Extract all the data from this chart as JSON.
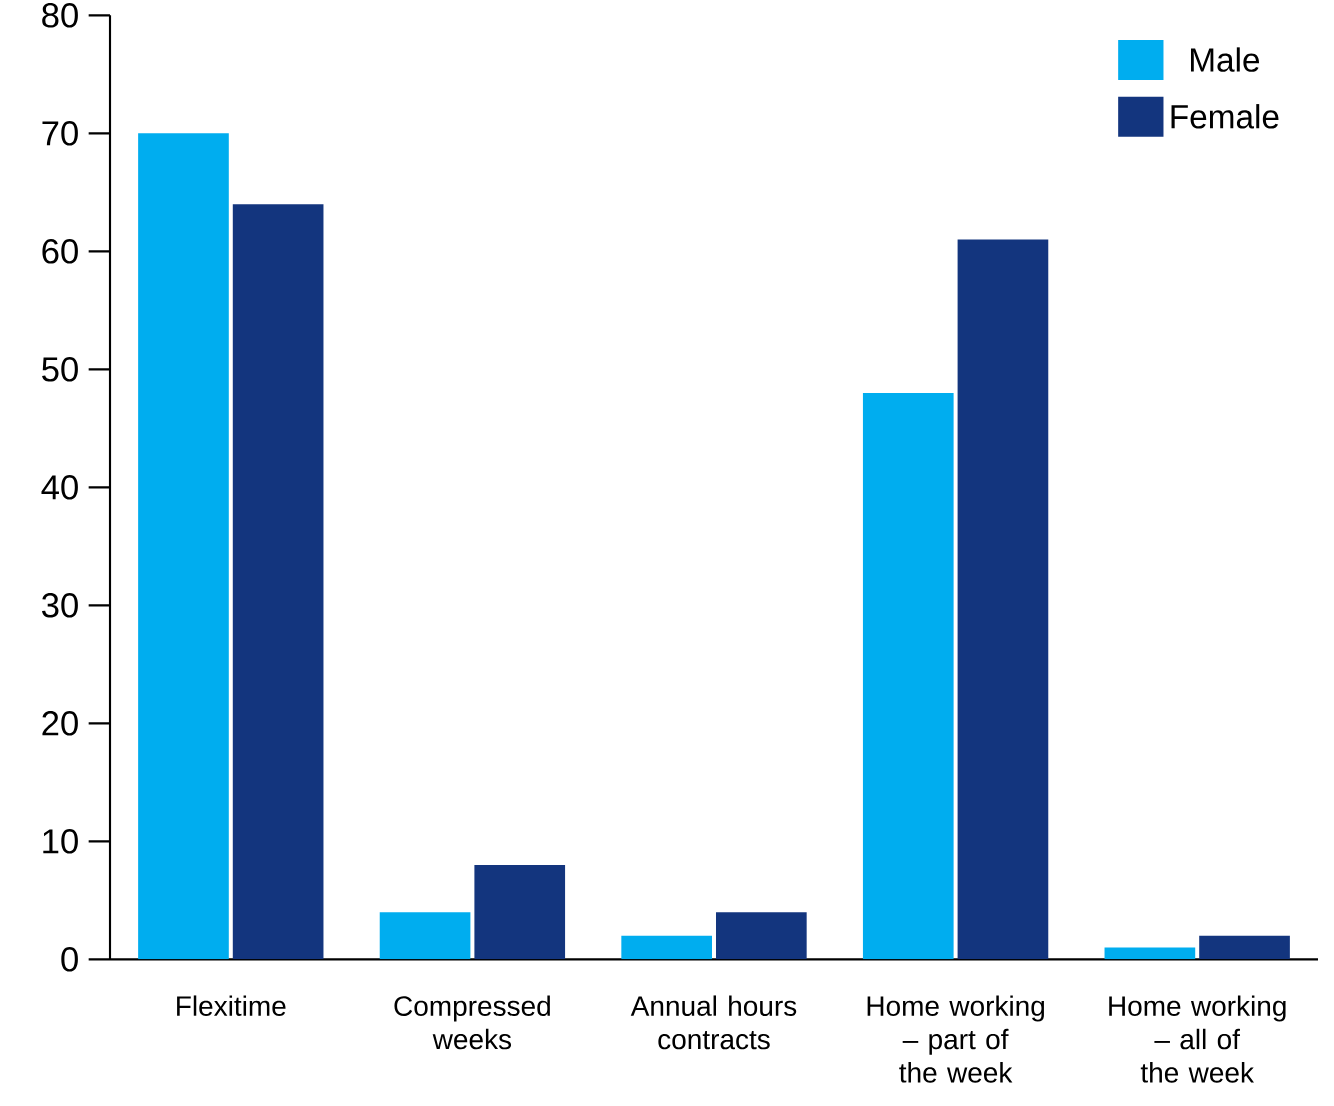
{
  "chart_data": {
    "type": "bar",
    "categories": [
      "Flexitime",
      "Compressed weeks",
      "Annual hours contracts",
      "Home working – part of the week",
      "Home working – all of the week"
    ],
    "series": [
      {
        "name": "Male",
        "color": "#00adef",
        "values": [
          70,
          4,
          2,
          48,
          1
        ]
      },
      {
        "name": "Female",
        "color": "#13357e",
        "values": [
          64,
          8,
          4,
          61,
          2
        ]
      }
    ],
    "ylim": [
      0,
      80
    ],
    "yticks": [
      0,
      10,
      20,
      30,
      40,
      50,
      60,
      70,
      80
    ],
    "legend": "top right",
    "grid": false
  }
}
